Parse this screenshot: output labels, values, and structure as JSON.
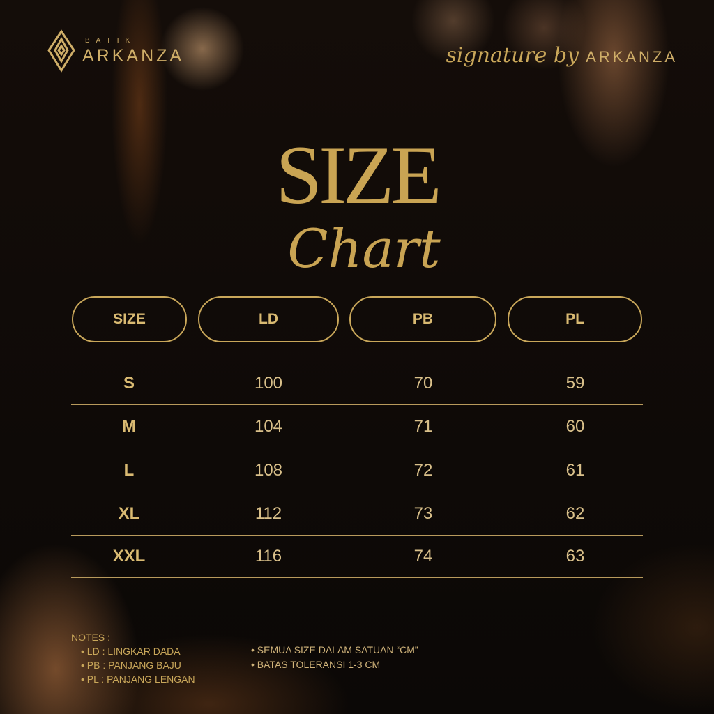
{
  "brand": {
    "small": "BATIK",
    "name": "ARKANZA",
    "signature_script": "signature by",
    "signature_name": "ARKANZA"
  },
  "title": {
    "line1": "SIZE",
    "line2": "Chart"
  },
  "headers": [
    "SIZE",
    "LD",
    "PB",
    "PL"
  ],
  "rows": [
    [
      "S",
      "100",
      "70",
      "59"
    ],
    [
      "M",
      "104",
      "71",
      "60"
    ],
    [
      "L",
      "108",
      "72",
      "61"
    ],
    [
      "XL",
      "112",
      "73",
      "62"
    ],
    [
      "XXL",
      "116",
      "74",
      "63"
    ]
  ],
  "notes": {
    "heading": "NOTES :",
    "left": [
      "LD : LINGKAR DADA",
      "PB : PANJANG BAJU",
      "PL : PANJANG LENGAN"
    ],
    "right": [
      "SEMUA SIZE DALAM SATUAN “CM”",
      "BATAS TOLERANSI 1-3 CM"
    ]
  },
  "colors": {
    "gold": "#c9a75a",
    "background": "#0d0907"
  }
}
